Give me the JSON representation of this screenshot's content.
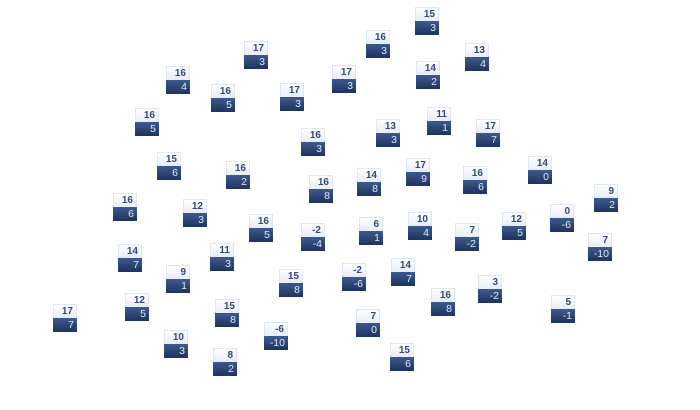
{
  "tiles": [
    {
      "top": "17",
      "bottom": "3"
    },
    {
      "top": "16",
      "bottom": "4"
    },
    {
      "top": "16",
      "bottom": "5"
    },
    {
      "top": "17",
      "bottom": "3"
    },
    {
      "top": "17",
      "bottom": "3"
    },
    {
      "top": "16",
      "bottom": "5"
    },
    {
      "top": "16",
      "bottom": "3"
    },
    {
      "top": "15",
      "bottom": "6"
    },
    {
      "top": "16",
      "bottom": "2"
    },
    {
      "top": "16",
      "bottom": "8"
    },
    {
      "top": "15",
      "bottom": "3"
    },
    {
      "top": "16",
      "bottom": "3"
    },
    {
      "top": "14",
      "bottom": "2"
    },
    {
      "top": "13",
      "bottom": "4"
    },
    {
      "top": "11",
      "bottom": "1"
    },
    {
      "top": "13",
      "bottom": "3"
    },
    {
      "top": "17",
      "bottom": "7"
    },
    {
      "top": "14",
      "bottom": "8"
    },
    {
      "top": "17",
      "bottom": "9"
    },
    {
      "top": "16",
      "bottom": "6"
    },
    {
      "top": "14",
      "bottom": "0"
    },
    {
      "top": "9",
      "bottom": "2"
    },
    {
      "top": "16",
      "bottom": "6"
    },
    {
      "top": "12",
      "bottom": "3"
    },
    {
      "top": "16",
      "bottom": "5"
    },
    {
      "top": "-2",
      "bottom": "-4"
    },
    {
      "top": "14",
      "bottom": "7"
    },
    {
      "top": "11",
      "bottom": "3"
    },
    {
      "top": "9",
      "bottom": "1"
    },
    {
      "top": "15",
      "bottom": "8"
    },
    {
      "top": "12",
      "bottom": "5"
    },
    {
      "top": "17",
      "bottom": "7"
    },
    {
      "top": "15",
      "bottom": "8"
    },
    {
      "top": "10",
      "bottom": "3"
    },
    {
      "top": "-6",
      "bottom": "-10"
    },
    {
      "top": "8",
      "bottom": "2"
    },
    {
      "top": "6",
      "bottom": "1"
    },
    {
      "top": "10",
      "bottom": "4"
    },
    {
      "top": "7",
      "bottom": "-2"
    },
    {
      "top": "12",
      "bottom": "5"
    },
    {
      "top": "0",
      "bottom": "-6"
    },
    {
      "top": "7",
      "bottom": "-10"
    },
    {
      "top": "-2",
      "bottom": "-6"
    },
    {
      "top": "14",
      "bottom": "7"
    },
    {
      "top": "3",
      "bottom": "-2"
    },
    {
      "top": "16",
      "bottom": "8"
    },
    {
      "top": "5",
      "bottom": "-1"
    },
    {
      "top": "7",
      "bottom": "0"
    },
    {
      "top": "15",
      "bottom": "6"
    }
  ],
  "colors": {
    "tile_top": "#f0f4fb",
    "tile_bottom": "#2a4474",
    "top_text": "#34497a",
    "bottom_text": "#e2e8f3"
  }
}
